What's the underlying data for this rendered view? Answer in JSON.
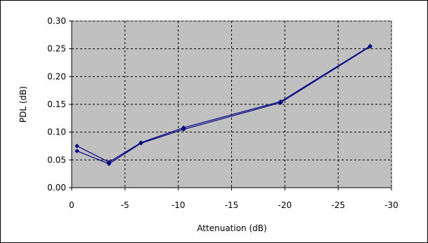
{
  "chart_data": {
    "type": "line",
    "title": "",
    "xlabel": "Attenuation (dB)",
    "ylabel": "PDL (dB)",
    "xlim": [
      0,
      -30
    ],
    "ylim": [
      0,
      0.3
    ],
    "x_ticks": [
      "0",
      "-5",
      "-10",
      "-15",
      "-20",
      "-25",
      "-30"
    ],
    "y_ticks": [
      "0.00",
      "0.05",
      "0.10",
      "0.15",
      "0.20",
      "0.25",
      "0.30"
    ],
    "grid": true,
    "legend": "none",
    "plot_background": "#c0c0c0",
    "series_color": "#000080",
    "series": [
      {
        "x": [
          -0.5,
          -3.5,
          -6.5,
          -10.5,
          -19.6,
          -28
        ],
        "y": [
          0.075,
          0.046,
          0.081,
          0.108,
          0.155,
          0.255
        ]
      },
      {
        "x": [
          -0.5,
          -3.5,
          -6.5,
          -10.5,
          -19.6,
          -28
        ],
        "y": [
          0.066,
          0.043,
          0.08,
          0.105,
          0.153,
          0.254
        ]
      }
    ]
  }
}
